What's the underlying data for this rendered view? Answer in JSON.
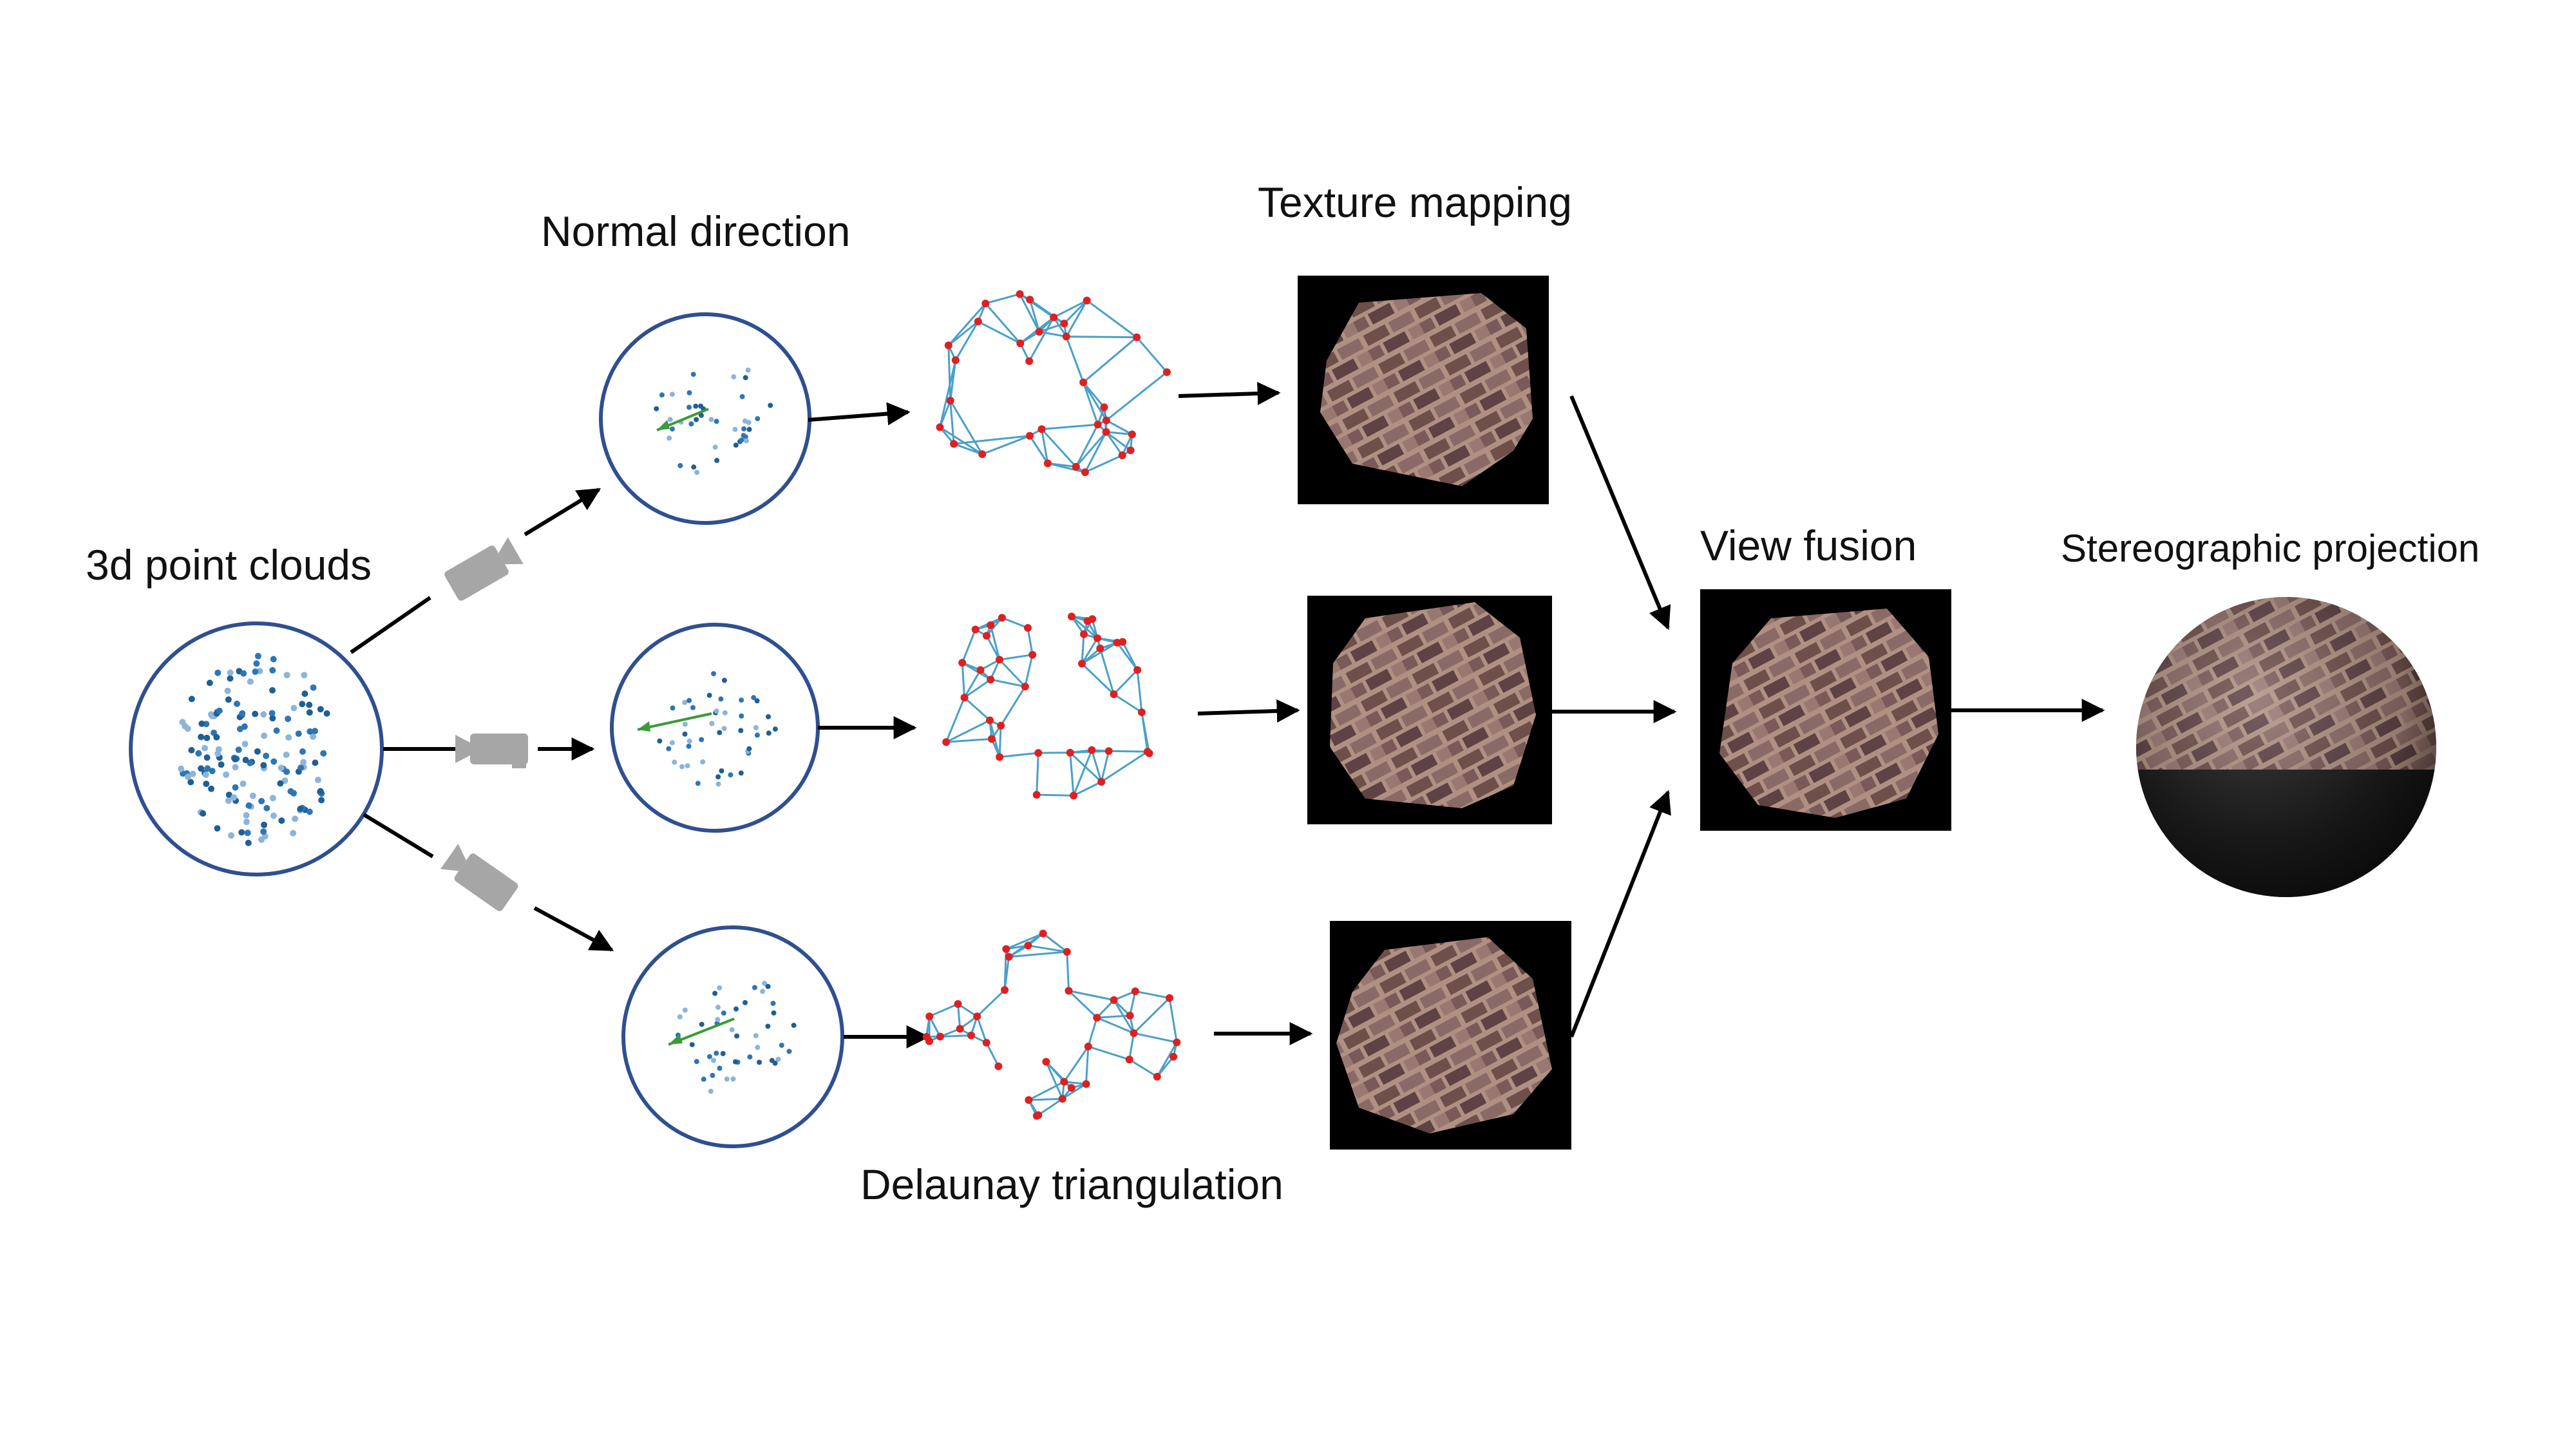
{
  "labels": {
    "point_clouds": "3d point clouds",
    "normal_direction": "Normal direction",
    "texture_mapping": "Texture mapping",
    "view_fusion": "View fusion",
    "stereographic_projection": "Stereographic projection",
    "delaunay_triangulation": "Delaunay triangulation"
  },
  "colors": {
    "circle_stroke": "#2f4f8f",
    "point_fill": "#2e75b6",
    "point_light": "#8db4d9",
    "normal_arrow": "#3a9a3a",
    "mesh_edge": "#4aa0c8",
    "mesh_vertex": "#e02020",
    "camera": "#a6a6a6",
    "texture_bg": "#000000",
    "brick_base": "#a07f72",
    "brick_dark": "#6e4f4a",
    "arrow": "#000000"
  },
  "icons": {
    "camera": "video-camera-icon",
    "arrow": "arrow-right-icon"
  }
}
